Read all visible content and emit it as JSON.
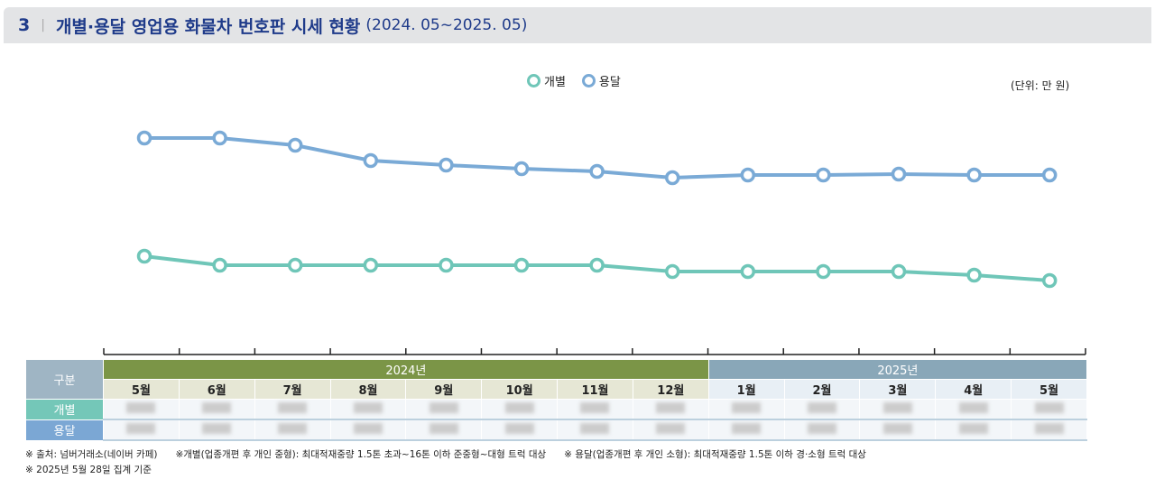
{
  "title": {
    "number": "3",
    "text": "개별·용달 영업용 화물차 번호판 시세 현황",
    "period": "(2024. 05~2025. 05)"
  },
  "unit": "(단위: 만 원)",
  "colors": {
    "gaebyeol": "#6fc6b8",
    "yongdal": "#7aaad6",
    "year2024": "#7b9547",
    "year2025": "#89a7b8"
  },
  "chart_data": {
    "type": "line",
    "note": "values blurred in original; estimated relative levels",
    "categories": [
      "5월",
      "6월",
      "7월",
      "8월",
      "9월",
      "10월",
      "11월",
      "12월",
      "1월",
      "2월",
      "3월",
      "4월",
      "5월"
    ],
    "series": [
      {
        "name": "개별",
        "color": "#6fc6b8",
        "values": [
          66,
          56,
          56,
          56,
          56,
          56,
          56,
          49,
          49,
          49,
          49,
          45,
          39
        ]
      },
      {
        "name": "용달",
        "color": "#7aaad6",
        "values": [
          197,
          197,
          189,
          172,
          167,
          163,
          160,
          153,
          156,
          156,
          157,
          156,
          156
        ]
      }
    ],
    "ylim": [
      0,
      230
    ],
    "grid": false,
    "legend": "top-center"
  },
  "table": {
    "header": "구분",
    "years": [
      "2024년",
      "2025년"
    ],
    "months_2024": [
      "5월",
      "6월",
      "7월",
      "8월",
      "9월",
      "10월",
      "11월",
      "12월"
    ],
    "months_2025": [
      "1월",
      "2월",
      "3월",
      "4월",
      "5월"
    ],
    "rows": [
      "개별",
      "용달"
    ]
  },
  "notes": [
    "※ 출처: 넘버거래소(네이버 카페)",
    "※개별(업종개편 후 개인 중형): 최대적재중량 1.5톤 초과~16톤 이하 준중형~대형 트럭 대상",
    "※ 용달(업종개편 후 개인 소형): 최대적재중량 1.5톤 이하 경·소형 트럭 대상",
    "※ 2025년 5월 28일 집계 기준"
  ]
}
